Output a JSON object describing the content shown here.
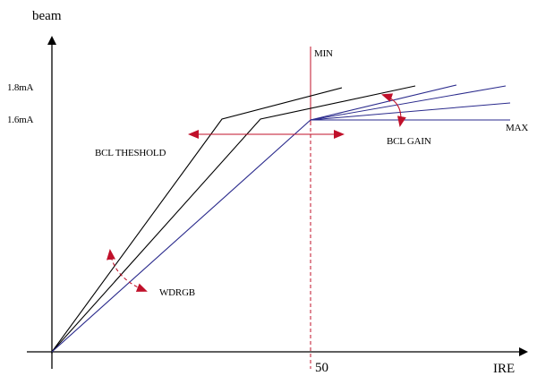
{
  "diagram": {
    "axis_y_label": "beam",
    "axis_x_label": "IRE",
    "y_tick_high": "1.8mA",
    "y_tick_low": "1.6mA",
    "x_tick": "50",
    "label_min": "MIN",
    "label_max": "MAX",
    "label_bcl_threshold": "BCL THESHOLD",
    "label_bcl_gain": "BCL GAIN",
    "label_wdrgb": "WDRGB"
  },
  "colors": {
    "black_curve": "#000000",
    "blue_curve": "#2a2a8c",
    "red_marker": "#c0102a",
    "axis": "#000000"
  }
}
